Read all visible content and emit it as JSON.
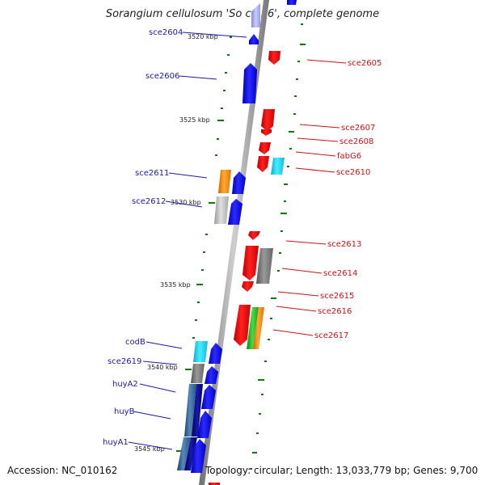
{
  "title": "Sorangium cellulosum 'So ce 56', complete genome",
  "footer": {
    "accession": "Accession: NC_010162",
    "topology": "Topology: circular; Length: 13,033,779 bp; Genes: 9,700"
  },
  "colors": {
    "forward_gene": "#1a1aee",
    "reverse_gene": "#ee1111",
    "cyan": "#33ddee",
    "orange": "#ee8811",
    "gray": "#888888",
    "light_gray": "#bbbbbb",
    "steelblue": "#3a6ea5",
    "green": "#33bb33",
    "tick": "#117711",
    "backbone": "#888888",
    "left_label": "#1a1aaa",
    "right_label": "#cc1111"
  },
  "position_labels": [
    "3520 kbp",
    "3525 kbp",
    "3530 kbp",
    "3535 kbp",
    "3540 kbp",
    "3545 kbp"
  ],
  "left_gene_labels": [
    "sce2604",
    "sce2606",
    "sce2611",
    "sce2612",
    "codB",
    "sce2619",
    "huyA2",
    "huyB",
    "huyA1"
  ],
  "right_gene_labels": [
    "sce2605",
    "sce2607",
    "sce2608",
    "fabG6",
    "sce2610",
    "sce2613",
    "sce2614",
    "sce2615",
    "sce2616",
    "sce2617"
  ]
}
